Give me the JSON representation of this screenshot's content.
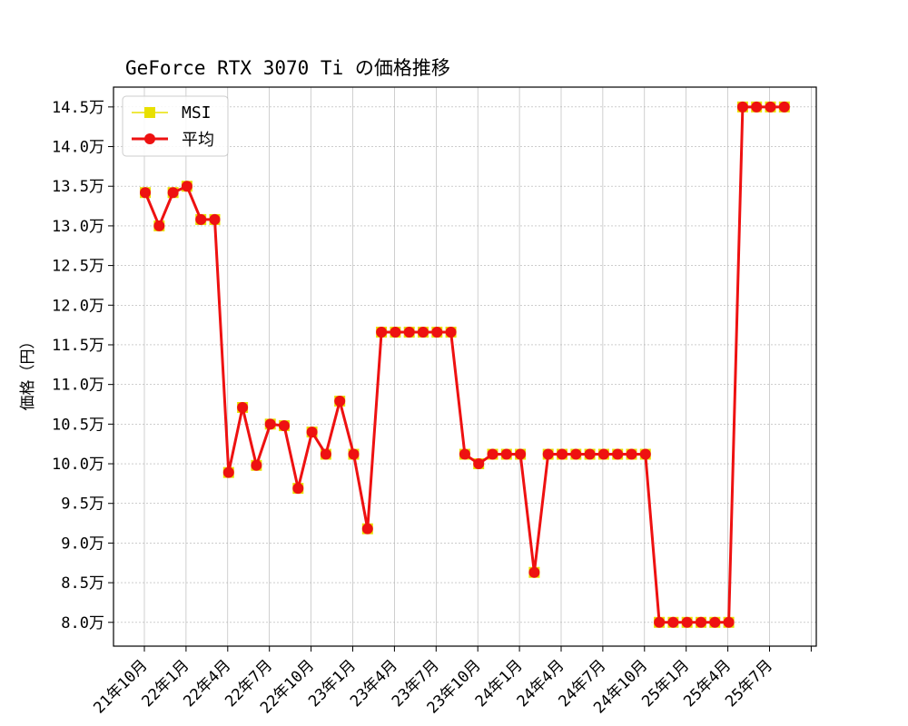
{
  "chart_data": {
    "type": "line",
    "title": "GeForce RTX 3070 Ti の価格推移",
    "xlabel": "",
    "ylabel": "価格（円）",
    "ylim": [
      77000,
      147500
    ],
    "x_ticks": [
      "21年10月",
      "22年1月",
      "22年4月",
      "22年7月",
      "22年10月",
      "23年1月",
      "23年4月",
      "23年7月",
      "23年10月",
      "24年1月",
      "24年4月",
      "24年7月",
      "24年10月",
      "25年1月",
      "25年4月",
      "25年7月"
    ],
    "y_ticks": [
      "8.0万",
      "8.5万",
      "9.0万",
      "9.5万",
      "10.0万",
      "10.5万",
      "11.0万",
      "11.5万",
      "12.0万",
      "12.5万",
      "13.0万",
      "13.5万",
      "14.0万",
      "14.5万"
    ],
    "y_tick_values": [
      80000,
      85000,
      90000,
      95000,
      100000,
      105000,
      110000,
      115000,
      120000,
      125000,
      130000,
      135000,
      140000,
      145000
    ],
    "grid": true,
    "legend_position": "top-left",
    "series": [
      {
        "name": "MSI",
        "color": "#e8e000",
        "marker": "square",
        "values": [
          134200,
          130000,
          134200,
          135000,
          130800,
          130800,
          98900,
          107100,
          99800,
          105000,
          104800,
          96900,
          104000,
          101200,
          107900,
          101200,
          91800,
          116600,
          116600,
          116600,
          116600,
          116600,
          116600,
          101200,
          100000,
          101200,
          101200,
          101200,
          86300,
          101200,
          101200,
          101200,
          101200,
          101200,
          101200,
          101200,
          101200,
          80000,
          80000,
          80000,
          80000,
          80000,
          80000,
          145000,
          145000,
          145000,
          145000
        ]
      },
      {
        "name": "平均",
        "color": "#ee1111",
        "marker": "circle",
        "values": [
          134200,
          130000,
          134200,
          135000,
          130800,
          130800,
          98900,
          107100,
          99800,
          105000,
          104800,
          96900,
          104000,
          101200,
          107900,
          101200,
          91800,
          116600,
          116600,
          116600,
          116600,
          116600,
          116600,
          101200,
          100000,
          101200,
          101200,
          101200,
          86300,
          101200,
          101200,
          101200,
          101200,
          101200,
          101200,
          101200,
          101200,
          80000,
          80000,
          80000,
          80000,
          80000,
          80000,
          145000,
          145000,
          145000,
          145000
        ]
      }
    ]
  }
}
